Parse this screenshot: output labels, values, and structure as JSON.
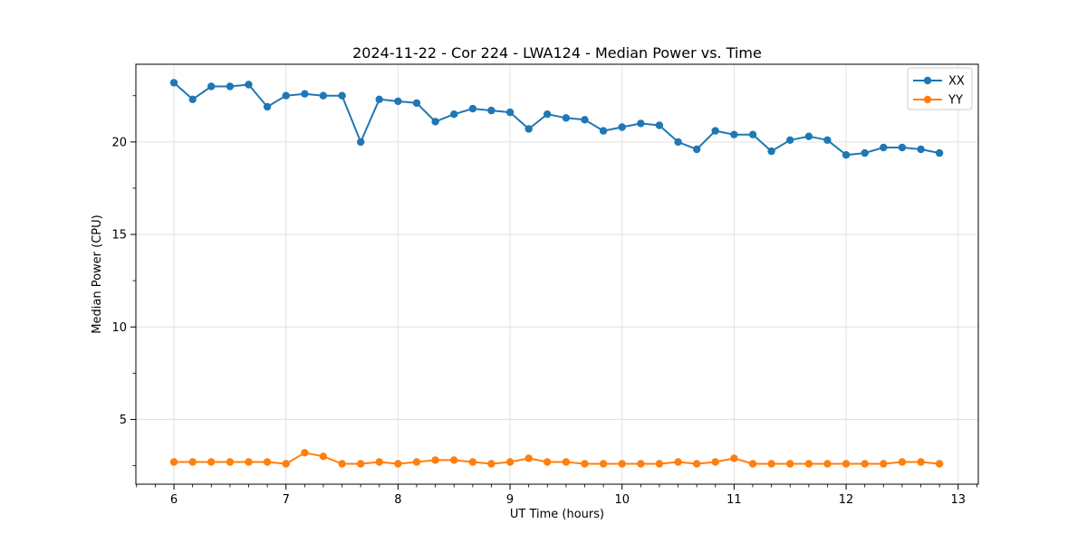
{
  "figure": {
    "background": "#ffffff",
    "grid_color": "#e0e0e0",
    "frame_color": "#000000",
    "legend_border_color": "#cccccc"
  },
  "chart_data": {
    "type": "line",
    "title": "2024-11-22 - Cor 224 - LWA124 - Median Power vs. Time",
    "xlabel": "UT Time (hours)",
    "ylabel": "Median Power (CPU)",
    "xlim": [
      5.66,
      13.18
    ],
    "ylim": [
      1.5,
      24.2
    ],
    "x_ticks": [
      6,
      7,
      8,
      9,
      10,
      11,
      12,
      13
    ],
    "y_ticks": [
      5,
      10,
      15,
      20
    ],
    "x_minor_step": 0.1666667,
    "y_minor_step": 2.5,
    "grid": true,
    "legend_position": "upper right",
    "marker": "o",
    "x": [
      6,
      6.167,
      6.333,
      6.5,
      6.667,
      6.833,
      7,
      7.167,
      7.333,
      7.5,
      7.667,
      7.833,
      8,
      8.167,
      8.333,
      8.5,
      8.667,
      8.833,
      9,
      9.167,
      9.333,
      9.5,
      9.667,
      9.833,
      10,
      10.167,
      10.333,
      10.5,
      10.667,
      10.833,
      11,
      11.167,
      11.333,
      11.5,
      11.667,
      11.833,
      12,
      12.167,
      12.333,
      12.5,
      12.667,
      12.833
    ],
    "series": [
      {
        "name": "XX",
        "color": "#1f77b4",
        "values": [
          23.2,
          22.3,
          23.0,
          23.0,
          23.1,
          21.9,
          22.5,
          22.6,
          22.5,
          22.5,
          20.0,
          22.3,
          22.2,
          22.1,
          21.1,
          21.5,
          21.8,
          21.7,
          21.6,
          20.7,
          21.5,
          21.3,
          21.2,
          20.6,
          20.8,
          21.0,
          20.9,
          20.0,
          19.6,
          20.6,
          20.4,
          20.4,
          19.5,
          20.1,
          20.3,
          20.1,
          19.3,
          19.4,
          19.7,
          19.7,
          19.6,
          19.4
        ]
      },
      {
        "name": "YY",
        "color": "#ff7f0e",
        "values": [
          2.7,
          2.7,
          2.7,
          2.7,
          2.7,
          2.7,
          2.6,
          3.2,
          3.0,
          2.6,
          2.6,
          2.7,
          2.6,
          2.7,
          2.8,
          2.8,
          2.7,
          2.6,
          2.7,
          2.9,
          2.7,
          2.7,
          2.6,
          2.6,
          2.6,
          2.6,
          2.6,
          2.7,
          2.6,
          2.7,
          2.9,
          2.6,
          2.6,
          2.6,
          2.6,
          2.6,
          2.6,
          2.6,
          2.6,
          2.7,
          2.7,
          2.6
        ]
      }
    ]
  }
}
